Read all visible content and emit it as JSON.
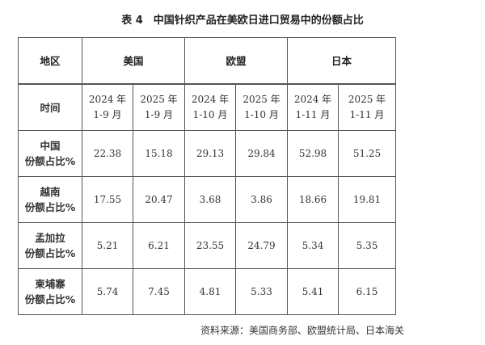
{
  "title": "表 4　中国针织产品在美欧日进口贸易中的份额占比",
  "table": {
    "region_label": "地区",
    "regions": [
      "美国",
      "欧盟",
      "日本"
    ],
    "time_label": "时间",
    "periods": [
      [
        "2024 年",
        "1-9 月"
      ],
      [
        "2025 年",
        "1-9 月"
      ],
      [
        "2024 年",
        "1-10 月"
      ],
      [
        "2025 年",
        "1-10 月"
      ],
      [
        "2024 年",
        "1-11 月"
      ],
      [
        "2025 年",
        "1-11 月"
      ]
    ],
    "rows": [
      {
        "country": "中国",
        "metric": "份额占比%",
        "values": [
          "22.38",
          "15.18",
          "29.13",
          "29.84",
          "52.98",
          "51.25"
        ]
      },
      {
        "country": "越南",
        "metric": "份额占比%",
        "values": [
          "17.55",
          "20.47",
          "3.68",
          "3.86",
          "18.66",
          "19.81"
        ]
      },
      {
        "country": "孟加拉",
        "metric": "份额占比%",
        "values": [
          "5.21",
          "6.21",
          "23.55",
          "24.79",
          "5.34",
          "5.35"
        ]
      },
      {
        "country": "柬埔寨",
        "metric": "份额占比%",
        "values": [
          "5.74",
          "7.45",
          "4.81",
          "5.33",
          "5.41",
          "6.15"
        ]
      }
    ]
  },
  "source": "资料来源：美国商务部、欧盟统计局、日本海关"
}
